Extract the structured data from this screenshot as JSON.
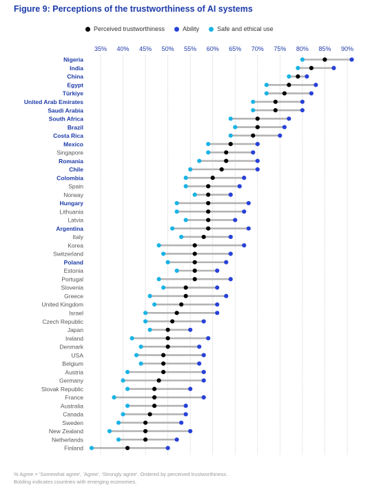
{
  "title": "Figure 9: Perceptions of the trustworthiness of AI systems",
  "legend": [
    {
      "label": "Perceived trustworthiness",
      "color": "#000000"
    },
    {
      "label": "Ability",
      "color": "#2741d8"
    },
    {
      "label": "Safe and ethical use",
      "color": "#19b3e6"
    }
  ],
  "footnote": [
    "% Agree = 'Somewhat agree', 'Agree', 'Strongly agree'. Ordered by perceived trustworthiness.",
    "Bolding indicates countries with emerging economies."
  ],
  "colors": {
    "trust": "#000000",
    "ability": "#2741d8",
    "safe": "#19b3e6",
    "connector": "#b3b3b3",
    "grid": "#c8c8c8",
    "tick": "#1c3aa8",
    "emerging_label": "#1c3aa8",
    "label": "#555555"
  },
  "chart_data": {
    "type": "dot-range",
    "title": "Figure 9: Perceptions of the trustworthiness of AI systems",
    "xlabel": "",
    "ylabel": "",
    "xlim": [
      31,
      93
    ],
    "xticks": [
      35,
      40,
      45,
      50,
      55,
      60,
      65,
      70,
      75,
      80,
      85,
      90
    ],
    "xtick_labels": [
      "35%",
      "40%",
      "45%",
      "50%",
      "55%",
      "60%",
      "65%",
      "70%",
      "75%",
      "80%",
      "85%",
      "90%"
    ],
    "grid": true,
    "legend_position": "top",
    "series_names": [
      "Perceived trustworthiness",
      "Ability",
      "Safe and ethical use"
    ],
    "rows": [
      {
        "country": "Nigeria",
        "emerging": true,
        "trust": 85,
        "ability": 91,
        "safe": 80
      },
      {
        "country": "India",
        "emerging": true,
        "trust": 82,
        "ability": 87,
        "safe": 79
      },
      {
        "country": "China",
        "emerging": true,
        "trust": 79,
        "ability": 81,
        "safe": 77
      },
      {
        "country": "Egypt",
        "emerging": true,
        "trust": 77,
        "ability": 83,
        "safe": 72
      },
      {
        "country": "Türkiye",
        "emerging": true,
        "trust": 76,
        "ability": 82,
        "safe": 72
      },
      {
        "country": "United Arab Emirates",
        "emerging": true,
        "trust": 74,
        "ability": 80,
        "safe": 69
      },
      {
        "country": "Saudi Arabia",
        "emerging": true,
        "trust": 74,
        "ability": 80,
        "safe": 69
      },
      {
        "country": "South Africa",
        "emerging": true,
        "trust": 70,
        "ability": 77,
        "safe": 64
      },
      {
        "country": "Brazil",
        "emerging": true,
        "trust": 70,
        "ability": 76,
        "safe": 65
      },
      {
        "country": "Costa Rica",
        "emerging": true,
        "trust": 69,
        "ability": 75,
        "safe": 64
      },
      {
        "country": "Mexico",
        "emerging": true,
        "trust": 64,
        "ability": 70,
        "safe": 59
      },
      {
        "country": "Singapore",
        "emerging": false,
        "trust": 63,
        "ability": 69,
        "safe": 59
      },
      {
        "country": "Romania",
        "emerging": true,
        "trust": 63,
        "ability": 70,
        "safe": 57
      },
      {
        "country": "Chile",
        "emerging": true,
        "trust": 62,
        "ability": 70,
        "safe": 55
      },
      {
        "country": "Colombia",
        "emerging": true,
        "trust": 60,
        "ability": 67,
        "safe": 54
      },
      {
        "country": "Spain",
        "emerging": false,
        "trust": 59,
        "ability": 66,
        "safe": 54
      },
      {
        "country": "Norway",
        "emerging": false,
        "trust": 59,
        "ability": 64,
        "safe": 56
      },
      {
        "country": "Hungary",
        "emerging": true,
        "trust": 59,
        "ability": 68,
        "safe": 52
      },
      {
        "country": "Lithuania",
        "emerging": false,
        "trust": 59,
        "ability": 67,
        "safe": 52
      },
      {
        "country": "Latvia",
        "emerging": false,
        "trust": 59,
        "ability": 65,
        "safe": 54
      },
      {
        "country": "Argentina",
        "emerging": true,
        "trust": 59,
        "ability": 68,
        "safe": 51
      },
      {
        "country": "Italy",
        "emerging": false,
        "trust": 58,
        "ability": 64,
        "safe": 53
      },
      {
        "country": "Korea",
        "emerging": false,
        "trust": 56,
        "ability": 67,
        "safe": 48
      },
      {
        "country": "Switzerland",
        "emerging": false,
        "trust": 56,
        "ability": 64,
        "safe": 49
      },
      {
        "country": "Poland",
        "emerging": true,
        "trust": 56,
        "ability": 63,
        "safe": 50
      },
      {
        "country": "Estonia",
        "emerging": false,
        "trust": 56,
        "ability": 61,
        "safe": 52
      },
      {
        "country": "Portugal",
        "emerging": false,
        "trust": 56,
        "ability": 64,
        "safe": 48
      },
      {
        "country": "Slovenia",
        "emerging": false,
        "trust": 54,
        "ability": 61,
        "safe": 49
      },
      {
        "country": "Greece",
        "emerging": false,
        "trust": 54,
        "ability": 63,
        "safe": 46
      },
      {
        "country": "United Kingdom",
        "emerging": false,
        "trust": 53,
        "ability": 61,
        "safe": 47
      },
      {
        "country": "Israel",
        "emerging": false,
        "trust": 52,
        "ability": 61,
        "safe": 45
      },
      {
        "country": "Czech Republic",
        "emerging": false,
        "trust": 51,
        "ability": 58,
        "safe": 45
      },
      {
        "country": "Japan",
        "emerging": false,
        "trust": 50,
        "ability": 55,
        "safe": 46
      },
      {
        "country": "Ireland",
        "emerging": false,
        "trust": 50,
        "ability": 59,
        "safe": 42
      },
      {
        "country": "Denmark",
        "emerging": false,
        "trust": 50,
        "ability": 57,
        "safe": 44
      },
      {
        "country": "USA",
        "emerging": false,
        "trust": 49,
        "ability": 58,
        "safe": 43
      },
      {
        "country": "Belgium",
        "emerging": false,
        "trust": 49,
        "ability": 57,
        "safe": 44
      },
      {
        "country": "Austria",
        "emerging": false,
        "trust": 49,
        "ability": 58,
        "safe": 41
      },
      {
        "country": "Germany",
        "emerging": false,
        "trust": 48,
        "ability": 58,
        "safe": 40
      },
      {
        "country": "Slovak Republic",
        "emerging": false,
        "trust": 47,
        "ability": 55,
        "safe": 41
      },
      {
        "country": "France",
        "emerging": false,
        "trust": 47,
        "ability": 58,
        "safe": 38
      },
      {
        "country": "Australia",
        "emerging": false,
        "trust": 47,
        "ability": 54,
        "safe": 41
      },
      {
        "country": "Canada",
        "emerging": false,
        "trust": 46,
        "ability": 54,
        "safe": 40
      },
      {
        "country": "Sweden",
        "emerging": false,
        "trust": 45,
        "ability": 53,
        "safe": 39
      },
      {
        "country": "New Zealand",
        "emerging": false,
        "trust": 45,
        "ability": 55,
        "safe": 37
      },
      {
        "country": "Netherlands",
        "emerging": false,
        "trust": 45,
        "ability": 52,
        "safe": 39
      },
      {
        "country": "Finland",
        "emerging": false,
        "trust": 41,
        "ability": 50,
        "safe": 33
      }
    ]
  }
}
